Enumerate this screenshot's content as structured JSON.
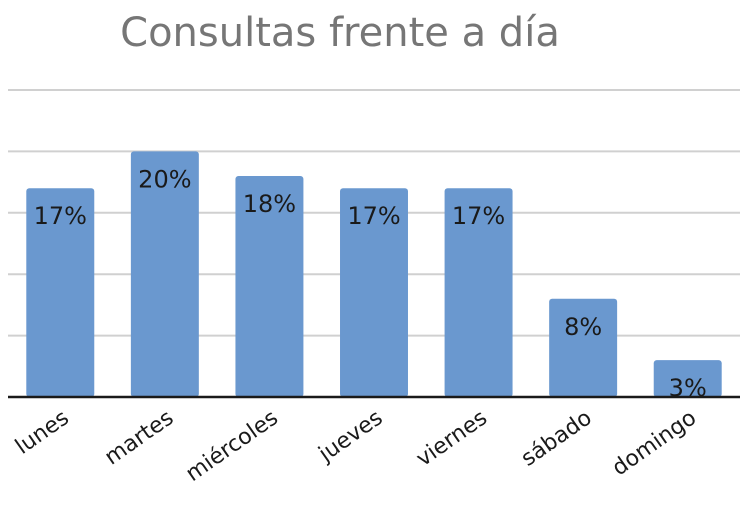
{
  "chart_data": {
    "type": "bar",
    "title": "Consultas frente a día",
    "categories": [
      "lunes",
      "martes",
      "miércoles",
      "jueves",
      "viernes",
      "sábado",
      "domingo"
    ],
    "values": [
      17,
      20,
      18,
      17,
      17,
      8,
      3
    ],
    "data_labels": [
      "17%",
      "20%",
      "18%",
      "17%",
      "17%",
      "8%",
      "3%"
    ],
    "xlabel": "",
    "ylabel": "",
    "ylim": [
      0,
      25
    ],
    "y_gridline_step": 5,
    "grid": true,
    "legend": "none",
    "colors": {
      "bar": "#6a98cf",
      "grid": "#d0d0d0",
      "axis": "#1a1a1a",
      "title": "#767676",
      "text": "#1a1a1a"
    }
  }
}
